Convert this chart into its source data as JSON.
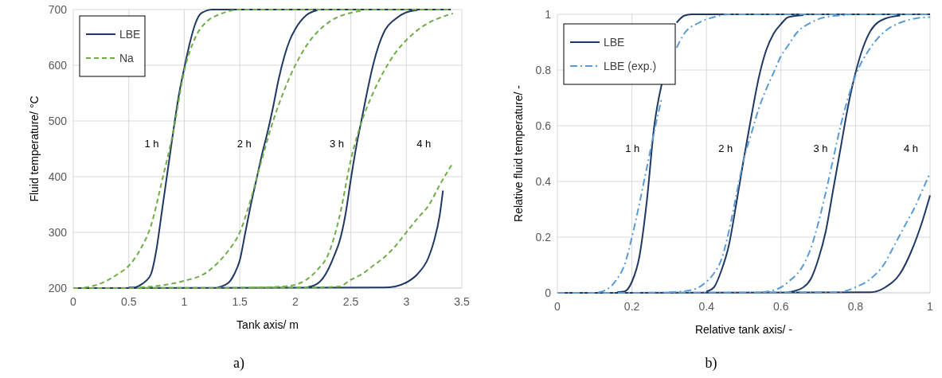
{
  "chart_data": [
    {
      "type": "line",
      "xlabel": "Tank axis/ m",
      "ylabel": "Fluid temperature/ °C",
      "xlim": [
        0,
        3.5
      ],
      "ylim": [
        200,
        700
      ],
      "xticks": [
        0,
        0.5,
        1,
        1.5,
        2,
        2.5,
        3,
        3.5
      ],
      "yticks": [
        200,
        300,
        400,
        500,
        600,
        700
      ],
      "grid": true,
      "legend": "top left",
      "marker": "none",
      "annotations": [
        "1 h",
        "2 h",
        "3 h",
        "4 h",
        "a)"
      ],
      "series": [
        {
          "name": "LBE",
          "color": "#1f3864",
          "line_style": "solid",
          "x": [
            0.5,
            0.55,
            0.6,
            0.65,
            0.7,
            0.75,
            0.8,
            0.85,
            0.9,
            0.95,
            1.0,
            1.05,
            1.1,
            1.15,
            1.25,
            3.4
          ],
          "values": [
            201,
            201,
            205,
            212,
            225,
            270,
            340,
            410,
            480,
            545,
            595,
            640,
            675,
            693,
            700,
            700
          ]
        },
        {
          "color": "#1f3864",
          "line_style": "solid",
          "x": [
            1.3,
            1.4,
            1.45,
            1.5,
            1.55,
            1.6,
            1.65,
            1.7,
            1.75,
            1.8,
            1.85,
            1.9,
            1.95,
            2.0,
            2.1,
            2.2
          ],
          "values": [
            201,
            210,
            225,
            250,
            300,
            350,
            395,
            440,
            480,
            525,
            575,
            615,
            645,
            665,
            690,
            699
          ]
        },
        {
          "color": "#1f3864",
          "line_style": "solid",
          "x": [
            2.1,
            2.2,
            2.25,
            2.3,
            2.35,
            2.4,
            2.45,
            2.5,
            2.55,
            2.6,
            2.65,
            2.7,
            2.75,
            2.8,
            2.9,
            3.0,
            3.1
          ],
          "values": [
            201,
            208,
            218,
            235,
            258,
            285,
            330,
            395,
            455,
            505,
            555,
            600,
            635,
            660,
            683,
            695,
            699
          ]
        },
        {
          "color": "#1f3864",
          "line_style": "solid",
          "x": [
            0,
            2.8,
            2.9,
            3.0,
            3.1,
            3.2,
            3.25,
            3.3,
            3.33
          ],
          "values": [
            200,
            201,
            203,
            210,
            225,
            255,
            285,
            330,
            375
          ]
        },
        {
          "name": "Na",
          "color": "#70ad47",
          "line_style": "dashed",
          "x": [
            0.1,
            0.2,
            0.3,
            0.4,
            0.5,
            0.6,
            0.7,
            0.8,
            0.9,
            1.0,
            1.1,
            1.2,
            1.3,
            1.4,
            1.5,
            3.4
          ],
          "values": [
            201,
            205,
            213,
            225,
            240,
            268,
            312,
            393,
            480,
            590,
            650,
            678,
            690,
            697,
            700,
            700
          ]
        },
        {
          "color": "#70ad47",
          "line_style": "dashed",
          "x": [
            0.6,
            0.8,
            1.0,
            1.2,
            1.3,
            1.4,
            1.5,
            1.6,
            1.7,
            1.8,
            1.9,
            2.0,
            2.1,
            2.2,
            2.3,
            2.4,
            2.5,
            2.6
          ],
          "values": [
            201,
            205,
            213,
            228,
            245,
            268,
            300,
            360,
            432,
            500,
            555,
            600,
            635,
            660,
            677,
            688,
            694,
            698
          ]
        },
        {
          "color": "#70ad47",
          "line_style": "dashed",
          "x": [
            1.6,
            1.8,
            1.9,
            2.0,
            2.1,
            2.2,
            2.3,
            2.4,
            2.5,
            2.6,
            2.7,
            2.8,
            2.9,
            3.0,
            3.1,
            3.2,
            3.3,
            3.42
          ],
          "values": [
            201,
            202,
            203,
            206,
            215,
            233,
            262,
            330,
            430,
            500,
            550,
            590,
            622,
            645,
            663,
            676,
            685,
            693
          ]
        },
        {
          "color": "#70ad47",
          "line_style": "dashed",
          "x": [
            0,
            2.1,
            2.4,
            2.5,
            2.6,
            2.7,
            2.8,
            2.9,
            3.0,
            3.1,
            3.2,
            3.3,
            3.38,
            3.42
          ],
          "values": [
            200,
            201,
            203,
            215,
            225,
            240,
            255,
            275,
            300,
            325,
            348,
            385,
            412,
            425
          ]
        }
      ]
    },
    {
      "type": "line",
      "xlabel": "Relative tank axis/ -",
      "ylabel": "Relative fluid temperature/ -",
      "xlim": [
        0,
        1
      ],
      "ylim": [
        0,
        1
      ],
      "xticks": [
        0,
        0.2,
        0.4,
        0.6,
        0.8,
        1
      ],
      "yticks": [
        0,
        0.2,
        0.4,
        0.6,
        0.8,
        1
      ],
      "grid": true,
      "legend": "top left",
      "marker": "none",
      "annotations": [
        "1 h",
        "2 h",
        "3 h",
        "4 h",
        "b)"
      ],
      "series": [
        {
          "name": "LBE",
          "color": "#1f3864",
          "line_style": "solid",
          "x": [
            0.16,
            0.18,
            0.2,
            0.22,
            0.24,
            0.26,
            0.28,
            0.29,
            0.3,
            0.32,
            0.34,
            0.36,
            1.0
          ],
          "values": [
            0.002,
            0.005,
            0.04,
            0.13,
            0.33,
            0.6,
            0.75,
            null,
            null,
            0.97,
            0.995,
            1,
            1
          ]
        },
        {
          "color": "#1f3864",
          "line_style": "solid",
          "x": [
            0.4,
            0.42,
            0.44,
            0.46,
            0.48,
            0.5,
            0.52,
            0.54,
            0.56,
            0.58,
            0.6,
            0.62,
            0.66
          ],
          "values": [
            0.005,
            0.02,
            0.08,
            0.17,
            0.32,
            0.48,
            0.63,
            0.77,
            0.87,
            0.93,
            0.965,
            0.99,
            0.997
          ]
        },
        {
          "color": "#1f3864",
          "line_style": "solid",
          "x": [
            0.62,
            0.66,
            0.68,
            0.7,
            0.72,
            0.74,
            0.76,
            0.78,
            0.8,
            0.82,
            0.84,
            0.88,
            0.92
          ],
          "values": [
            0.002,
            0.02,
            0.05,
            0.12,
            0.22,
            0.37,
            0.52,
            0.67,
            0.79,
            0.88,
            0.94,
            0.985,
            0.996
          ]
        },
        {
          "color": "#1f3864",
          "line_style": "solid",
          "x": [
            0,
            0.84,
            0.88,
            0.92,
            0.95,
            0.98,
            1.0
          ],
          "values": [
            0,
            0.002,
            0.02,
            0.07,
            0.15,
            0.26,
            0.35
          ]
        },
        {
          "name": "LBE (exp.)",
          "color": "#5b9bd5",
          "line_style": "dashdot",
          "x": [
            0.11,
            0.13,
            0.16,
            0.18,
            0.2,
            0.22,
            0.24,
            0.26,
            0.28,
            0.3,
            0.32,
            0.34,
            0.38,
            0.42,
            0.46,
            1.0
          ],
          "values": [
            0.002,
            0.01,
            0.05,
            0.1,
            0.2,
            0.32,
            0.45,
            0.58,
            0.7,
            null,
            0.88,
            0.93,
            0.97,
            0.99,
            1,
            1
          ]
        },
        {
          "color": "#5b9bd5",
          "line_style": "dashdot",
          "x": [
            0.3,
            0.36,
            0.4,
            0.42,
            0.44,
            0.46,
            0.48,
            0.5,
            0.52,
            0.54,
            0.56,
            0.58,
            0.6,
            0.62,
            0.64,
            0.68,
            0.72,
            0.78
          ],
          "values": [
            0.002,
            0.01,
            0.04,
            0.07,
            0.12,
            0.22,
            0.35,
            0.48,
            0.57,
            0.66,
            0.73,
            0.79,
            0.85,
            0.89,
            0.93,
            0.97,
            0.99,
            0.997
          ]
        },
        {
          "color": "#5b9bd5",
          "line_style": "dashdot",
          "x": [
            0.55,
            0.6,
            0.62,
            0.66,
            0.68,
            0.7,
            0.72,
            0.74,
            0.76,
            0.78,
            0.8,
            0.84,
            0.88,
            0.92,
            0.96,
            1.0
          ],
          "values": [
            0.002,
            0.02,
            0.04,
            0.1,
            0.16,
            0.25,
            0.36,
            0.48,
            0.6,
            0.7,
            0.78,
            0.88,
            0.94,
            0.97,
            0.985,
            0.99
          ]
        },
        {
          "color": "#5b9bd5",
          "line_style": "dashdot",
          "x": [
            0,
            0.75,
            0.8,
            0.84,
            0.88,
            0.9,
            0.92,
            0.94,
            0.96,
            0.98,
            1.0
          ],
          "values": [
            0,
            0.002,
            0.02,
            0.05,
            0.11,
            0.16,
            0.21,
            0.26,
            0.31,
            0.37,
            0.43
          ]
        }
      ]
    }
  ]
}
